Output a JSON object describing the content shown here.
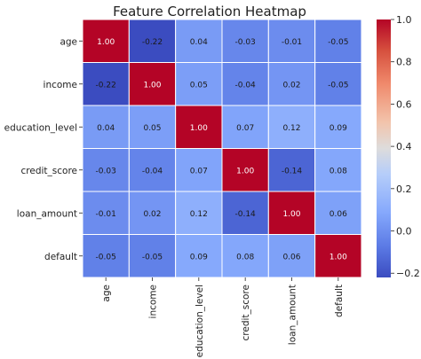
{
  "chart_data": {
    "type": "heatmap",
    "title": "Feature Correlation Heatmap",
    "rows": [
      "age",
      "income",
      "education_level",
      "credit_score",
      "loan_amount",
      "default"
    ],
    "columns": [
      "age",
      "income",
      "education_level",
      "credit_score",
      "loan_amount",
      "default"
    ],
    "values": [
      [
        1.0,
        -0.22,
        0.04,
        -0.03,
        -0.01,
        -0.05
      ],
      [
        -0.22,
        1.0,
        0.05,
        -0.04,
        0.02,
        -0.05
      ],
      [
        0.04,
        0.05,
        1.0,
        0.07,
        0.12,
        0.09
      ],
      [
        -0.03,
        -0.04,
        0.07,
        1.0,
        -0.14,
        0.08
      ],
      [
        -0.01,
        0.02,
        0.12,
        -0.14,
        1.0,
        0.06
      ],
      [
        -0.05,
        -0.05,
        0.09,
        0.08,
        0.06,
        1.0
      ]
    ],
    "value_format": "2 decimals",
    "colormap": "coolwarm",
    "colorbar": {
      "range": [
        -0.22,
        1.0
      ],
      "ticks": [
        "1.0",
        "0.8",
        "0.6",
        "0.4",
        "0.2",
        "0.0",
        "−0.2"
      ]
    },
    "colors": {
      "low": "#3b4cc0",
      "mid": "#dddddd",
      "high": "#b40426",
      "gridline": "#ffffff"
    }
  }
}
